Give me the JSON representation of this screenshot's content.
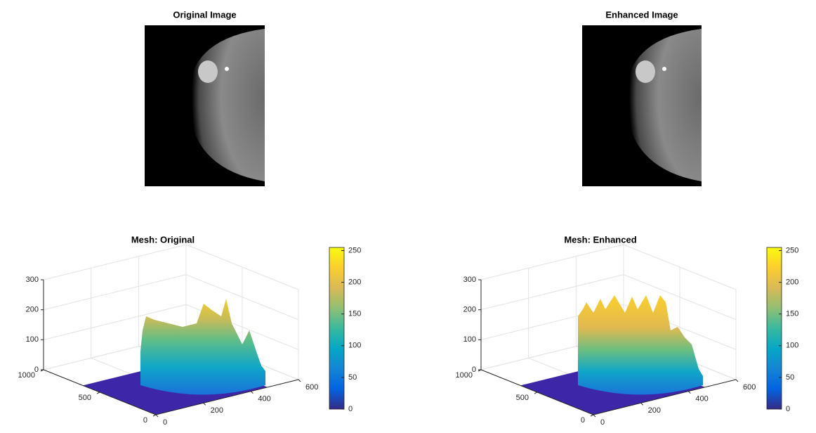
{
  "chart_data": [
    {
      "type": "image",
      "title": "Original Image"
    },
    {
      "type": "image",
      "title": "Enhanced Image"
    },
    {
      "type": "mesh",
      "title": "Mesh: Original",
      "xlim": [
        0,
        600
      ],
      "xticks": [
        0,
        200,
        400,
        600
      ],
      "ylim": [
        0,
        1000
      ],
      "yticks": [
        0,
        500,
        1000
      ],
      "zlim": [
        0,
        300
      ],
      "zticks": [
        0,
        100,
        200,
        300
      ],
      "clim": [
        0,
        255
      ],
      "cticks": [
        0,
        50,
        100,
        150,
        200,
        250
      ],
      "grid": true
    },
    {
      "type": "mesh",
      "title": "Mesh: Enhanced",
      "xlim": [
        0,
        600
      ],
      "xticks": [
        0,
        200,
        400,
        600
      ],
      "ylim": [
        0,
        1000
      ],
      "yticks": [
        0,
        500,
        1000
      ],
      "zlim": [
        0,
        300
      ],
      "zticks": [
        0,
        100,
        200,
        300
      ],
      "clim": [
        0,
        255
      ],
      "cticks": [
        0,
        50,
        100,
        150,
        200,
        250
      ],
      "grid": true
    }
  ]
}
